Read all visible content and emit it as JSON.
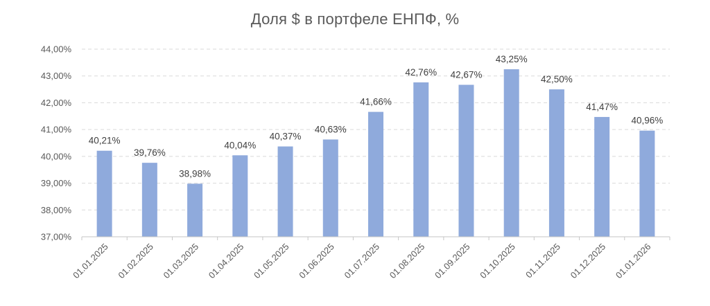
{
  "chart_data": {
    "type": "bar",
    "title": "Доля $ в портфеле ЕНПФ, %",
    "categories": [
      "01.01.2025",
      "01.02.2025",
      "01.03.2025",
      "01.04.2025",
      "01.05.2025",
      "01.06.2025",
      "01.07.2025",
      "01.08.2025",
      "01.09.2025",
      "01.10.2025",
      "01.11.2025",
      "01.12.2025",
      "01.01.2026"
    ],
    "values": [
      40.21,
      39.76,
      38.98,
      40.04,
      40.37,
      40.63,
      41.66,
      42.76,
      42.67,
      43.25,
      42.5,
      41.47,
      40.96
    ],
    "data_labels": [
      "40,21%",
      "39,76%",
      "38,98%",
      "40,04%",
      "40,37%",
      "40,63%",
      "41,66%",
      "42,76%",
      "42,67%",
      "43,25%",
      "42,50%",
      "41,47%",
      "40,96%"
    ],
    "xlabel": "",
    "ylabel": "",
    "ylim": [
      37,
      44
    ],
    "y_tick_values": [
      44,
      43,
      42,
      41,
      40,
      39,
      38,
      37
    ],
    "y_tick_labels": [
      "44,00%",
      "43,00%",
      "42,00%",
      "41,00%",
      "40,00%",
      "39,00%",
      "38,00%",
      "37,00%"
    ],
    "grid": "horizontal-dashed",
    "legend": "none",
    "colors": {
      "bar": "#8FAADC",
      "title_text": "#595959",
      "axis_text": "#595959",
      "data_label_text": "#404040",
      "gridline": "#D9D9D9",
      "axis_line": "#C6C6C6"
    }
  }
}
